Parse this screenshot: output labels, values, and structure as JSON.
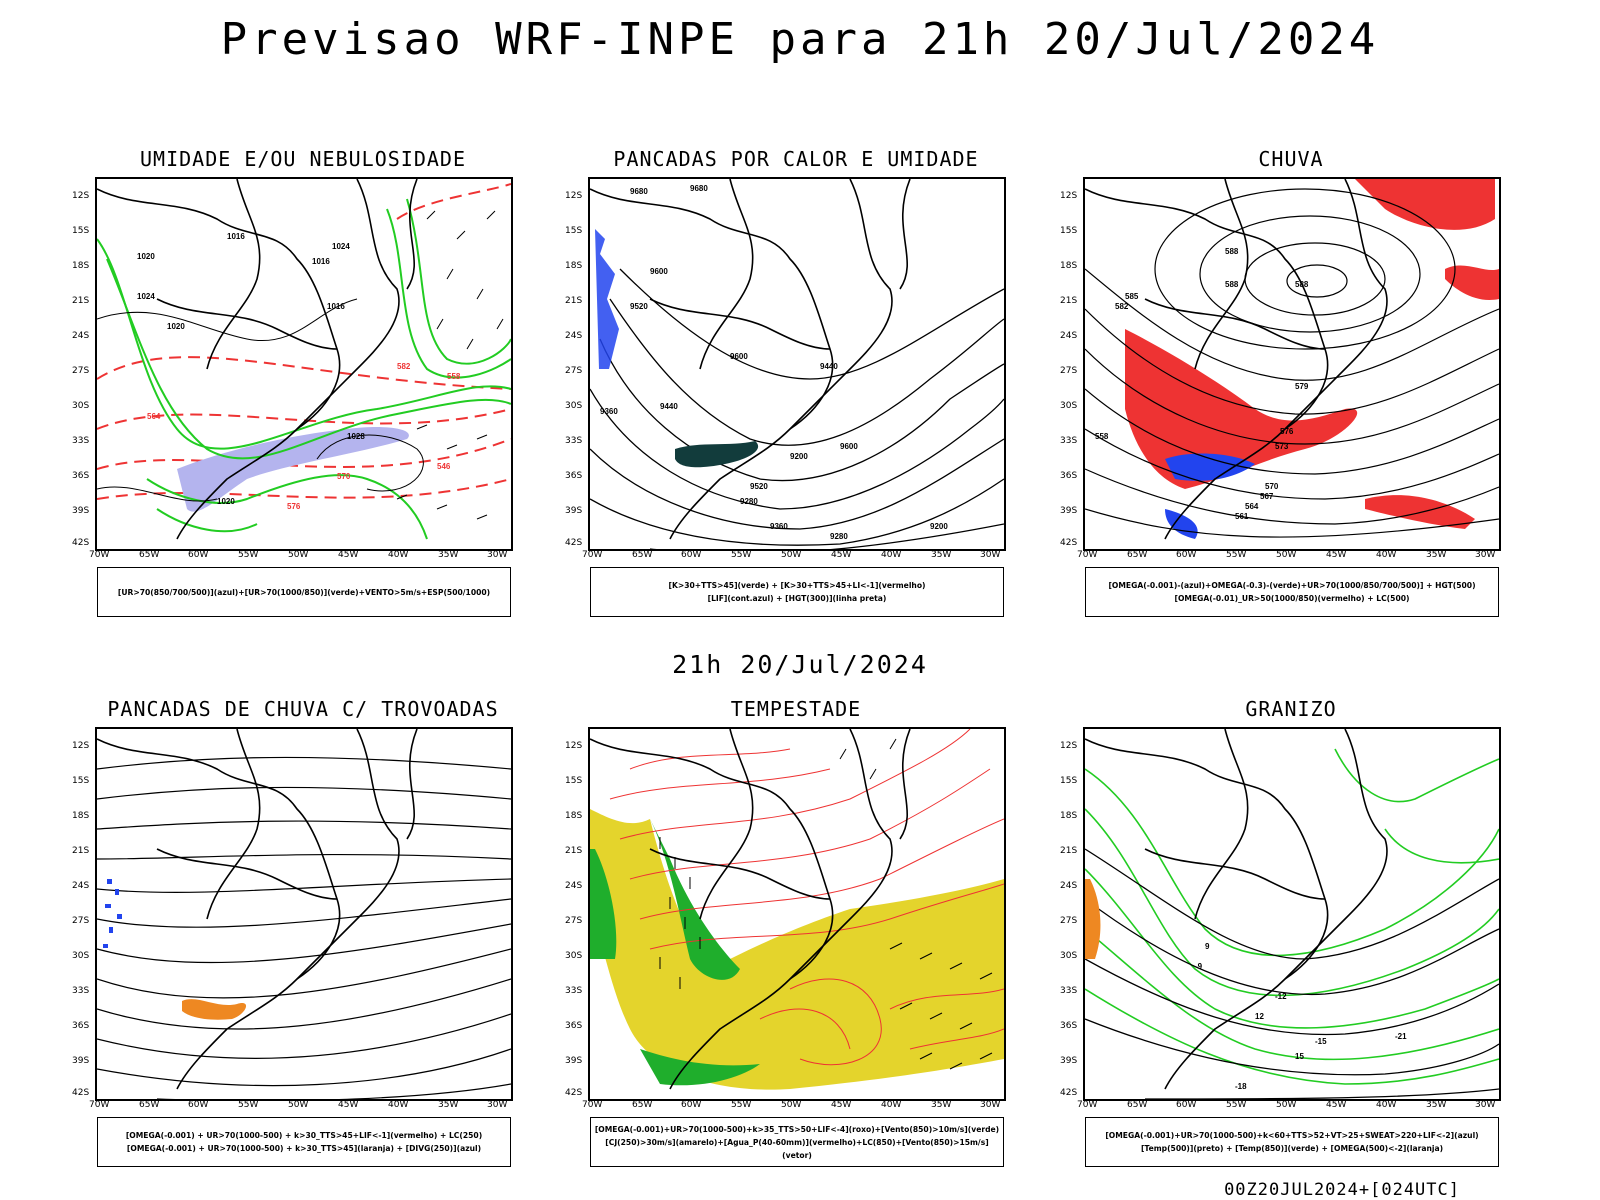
{
  "title": "Previsao WRF-INPE  para 21h 20/Jul/2024",
  "mid_label": "21h 20/Jul/2024",
  "footer": "00Z20JUL2024+[024UTC]",
  "lat_labels": [
    "12S",
    "15S",
    "18S",
    "21S",
    "24S",
    "27S",
    "30S",
    "33S",
    "36S",
    "39S",
    "42S"
  ],
  "lon_labels": [
    "70W",
    "65W",
    "60W",
    "55W",
    "50W",
    "45W",
    "40W",
    "35W",
    "30W"
  ],
  "panels": [
    {
      "title": "UMIDADE E/OU NEBULOSIDADE",
      "legend": [
        "[UR>70(850/700/500)](azul)+[UR>70(1000/850)](verde)+VENTO>5m/s+ESP(500/1000)"
      ],
      "contour_labels": [
        "1016",
        "1020",
        "1024",
        "1028",
        "1016",
        "1020",
        "1024",
        "1020",
        "1016",
        "546",
        "552",
        "558",
        "564",
        "570",
        "576",
        "582"
      ]
    },
    {
      "title": "PANCADAS POR CALOR E UMIDADE",
      "legend": [
        "[K>30+TTS>45](verde) + [K>30+TTS>45+LI<-1](vermelho)",
        "[LIF](cont.azul) + [HGT(300)](linha preta)"
      ],
      "contour_labels": [
        "9680",
        "9680",
        "9600",
        "9520",
        "9440",
        "9360",
        "9280",
        "9200",
        "9600",
        "9520",
        "9440",
        "9360",
        "9280",
        "9200",
        "9600"
      ]
    },
    {
      "title": "CHUVA",
      "legend": [
        "[OMEGA(-0.001)-(azul)+OMEGA(-0.3)-(verde)+UR>70(1000/850/700/500)] + HGT(500)",
        "[OMEGA(-0.01)_UR>50(1000/850)(vermelho) + LC(500)"
      ],
      "contour_labels": [
        "588",
        "588",
        "588",
        "585",
        "582",
        "579",
        "576",
        "573",
        "570",
        "567",
        "564",
        "561",
        "558"
      ]
    },
    {
      "title": "PANCADAS DE CHUVA C/ TROVOADAS",
      "legend": [
        "[OMEGA(-0.001) + UR>70(1000-500) + k>30_TTS>45+LIF<-1](vermelho) + LC(250)",
        "[OMEGA(-0.001) + UR>70(1000-500) + k>30_TTS>45](laranja) + [DIVG(250)](azul)"
      ]
    },
    {
      "title": "TEMPESTADE",
      "legend": [
        "[OMEGA(-0.001)+UR>70(1000-500)+k>35_TTS>50+LIF<-4](roxo)+[Vento(850)>10m/s](verde)",
        "[CJ(250)>30m/s](amarelo)+[Agua_P(40-60mm)](vermelho)+LC(850)+[Vento(850)>15m/s](vetor)"
      ]
    },
    {
      "title": "GRANIZO",
      "legend": [
        "[OMEGA(-0.001)+UR>70(1000-500)+k<60+TTS>52+VT>25+SWEAT>220+LIF<-2](azul)",
        "[Temp(500)](preto) + [Temp(850)](verde) + [OMEGA(500)<-2](laranja)"
      ],
      "contour_labels": [
        "-9",
        "-12",
        "-15",
        "-18",
        "-21",
        "9",
        "12",
        "15"
      ]
    }
  ],
  "colors": {
    "green": "#22cc22",
    "red": "#ee3333",
    "blue": "#2244ee",
    "lavender": "#b4b4ee",
    "yellow": "#e4d42c",
    "orange": "#ee8822",
    "darkgreen": "#123c3c",
    "vgreen": "#1fae2c"
  }
}
